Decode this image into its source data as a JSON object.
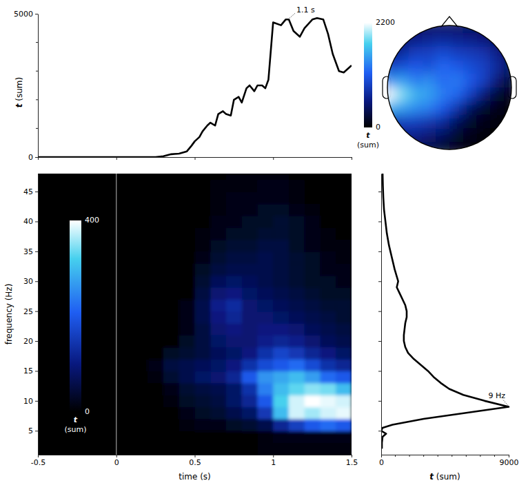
{
  "chart_data": [
    {
      "type": "line",
      "ylabel": "t (sum)",
      "x": [
        -0.5,
        -0.4,
        -0.3,
        -0.2,
        -0.1,
        0,
        0.1,
        0.2,
        0.25,
        0.3,
        0.35,
        0.4,
        0.45,
        0.48,
        0.5,
        0.53,
        0.55,
        0.58,
        0.6,
        0.63,
        0.65,
        0.68,
        0.7,
        0.73,
        0.75,
        0.78,
        0.8,
        0.83,
        0.85,
        0.88,
        0.9,
        0.93,
        0.95,
        0.97,
        1.0,
        1.05,
        1.08,
        1.1,
        1.13,
        1.17,
        1.2,
        1.25,
        1.28,
        1.32,
        1.35,
        1.38,
        1.42,
        1.45,
        1.5
      ],
      "values": [
        0,
        0,
        0,
        0,
        0,
        0,
        0,
        0,
        0,
        30,
        100,
        120,
        200,
        400,
        550,
        700,
        900,
        1100,
        1200,
        1100,
        1500,
        1600,
        1500,
        1450,
        2000,
        2100,
        1900,
        2400,
        2500,
        2300,
        2500,
        2500,
        2400,
        2700,
        4700,
        4600,
        4800,
        4800,
        4400,
        4200,
        4500,
        4800,
        4850,
        4800,
        4300,
        3600,
        3000,
        2950,
        3200
      ],
      "xlim": [
        -0.5,
        1.5
      ],
      "xticks": [
        -0.5,
        0,
        0.5,
        1,
        1.5
      ],
      "ylim": [
        0,
        5000
      ],
      "yticks": [
        0,
        5000
      ],
      "minor_yticks": [
        1000,
        2000,
        3000,
        4000
      ],
      "tick_labels": "y",
      "annotations": [
        {
          "text": "1.1 s",
          "x": 1.1,
          "y": 4800
        }
      ]
    },
    {
      "type": "heatmap",
      "xlabel": "time (s)",
      "ylabel": "frequency (Hz)",
      "x": [
        -0.45,
        -0.35,
        -0.25,
        -0.15,
        -0.05,
        0.05,
        0.15,
        0.25,
        0.35,
        0.45,
        0.55,
        0.65,
        0.75,
        0.85,
        0.95,
        1.05,
        1.15,
        1.25,
        1.35,
        1.45
      ],
      "y": [
        2,
        4,
        6,
        8,
        10,
        12,
        14,
        16,
        18,
        20,
        22,
        24,
        26,
        28,
        30,
        32,
        34,
        36,
        38,
        40,
        42,
        44,
        46,
        48
      ],
      "z": [
        [
          0,
          0,
          0,
          0,
          0,
          0,
          0,
          0,
          0,
          0,
          0,
          0,
          0,
          0,
          10,
          10,
          10,
          10,
          10,
          10
        ],
        [
          0,
          0,
          0,
          0,
          0,
          0,
          0,
          0,
          0,
          0,
          0,
          0,
          0,
          0,
          10,
          20,
          20,
          20,
          20,
          20
        ],
        [
          0,
          0,
          0,
          0,
          0,
          0,
          0,
          0,
          0,
          10,
          20,
          20,
          30,
          40,
          60,
          120,
          160,
          200,
          220,
          200
        ],
        [
          0,
          0,
          0,
          0,
          0,
          0,
          0,
          0,
          0,
          20,
          30,
          40,
          60,
          80,
          150,
          300,
          380,
          360,
          380,
          390
        ],
        [
          0,
          0,
          0,
          0,
          0,
          0,
          0,
          0,
          10,
          30,
          40,
          50,
          80,
          120,
          200,
          320,
          380,
          400,
          390,
          380
        ],
        [
          0,
          0,
          0,
          0,
          0,
          0,
          0,
          0,
          20,
          40,
          50,
          60,
          80,
          140,
          240,
          300,
          330,
          350,
          340,
          300
        ],
        [
          0,
          0,
          0,
          0,
          0,
          0,
          0,
          10,
          40,
          60,
          80,
          90,
          120,
          200,
          260,
          280,
          300,
          270,
          220,
          200
        ],
        [
          0,
          0,
          0,
          0,
          0,
          0,
          0,
          20,
          50,
          60,
          70,
          80,
          100,
          140,
          180,
          200,
          220,
          180,
          140,
          120
        ],
        [
          0,
          0,
          0,
          0,
          0,
          0,
          0,
          0,
          30,
          40,
          50,
          70,
          80,
          100,
          140,
          170,
          150,
          120,
          100,
          80
        ],
        [
          0,
          0,
          0,
          0,
          0,
          0,
          0,
          0,
          0,
          30,
          50,
          80,
          90,
          90,
          110,
          120,
          110,
          90,
          70,
          60
        ],
        [
          0,
          0,
          0,
          0,
          0,
          0,
          0,
          0,
          0,
          20,
          50,
          90,
          100,
          90,
          100,
          100,
          90,
          70,
          60,
          50
        ],
        [
          0,
          0,
          0,
          0,
          0,
          0,
          0,
          0,
          0,
          20,
          60,
          100,
          120,
          90,
          90,
          80,
          70,
          60,
          50,
          40
        ],
        [
          0,
          0,
          0,
          0,
          0,
          0,
          0,
          0,
          0,
          20,
          60,
          110,
          130,
          90,
          80,
          70,
          60,
          50,
          40,
          40
        ],
        [
          0,
          0,
          0,
          0,
          0,
          0,
          0,
          0,
          0,
          0,
          50,
          90,
          100,
          80,
          70,
          60,
          50,
          40,
          30,
          30
        ],
        [
          0,
          0,
          0,
          0,
          0,
          0,
          0,
          0,
          0,
          0,
          40,
          70,
          80,
          70,
          60,
          50,
          40,
          30,
          30,
          20
        ],
        [
          0,
          0,
          0,
          0,
          0,
          0,
          0,
          0,
          0,
          0,
          30,
          50,
          60,
          60,
          60,
          50,
          40,
          30,
          20,
          20
        ],
        [
          0,
          0,
          0,
          0,
          0,
          0,
          0,
          0,
          0,
          0,
          20,
          40,
          50,
          50,
          60,
          50,
          40,
          30,
          20,
          10
        ],
        [
          0,
          0,
          0,
          0,
          0,
          0,
          0,
          0,
          0,
          0,
          10,
          30,
          40,
          40,
          50,
          50,
          30,
          20,
          10,
          10
        ],
        [
          0,
          0,
          0,
          0,
          0,
          0,
          0,
          0,
          0,
          0,
          10,
          20,
          30,
          30,
          40,
          40,
          30,
          20,
          10,
          0
        ],
        [
          0,
          0,
          0,
          0,
          0,
          0,
          0,
          0,
          0,
          0,
          0,
          20,
          20,
          30,
          30,
          40,
          30,
          20,
          0,
          0
        ],
        [
          0,
          0,
          0,
          0,
          0,
          0,
          0,
          0,
          0,
          0,
          0,
          10,
          20,
          20,
          30,
          30,
          20,
          10,
          0,
          0
        ],
        [
          0,
          0,
          0,
          0,
          0,
          0,
          0,
          0,
          0,
          0,
          0,
          10,
          20,
          20,
          20,
          20,
          10,
          0,
          0,
          0
        ],
        [
          0,
          0,
          0,
          0,
          0,
          0,
          0,
          0,
          0,
          0,
          0,
          10,
          10,
          10,
          20,
          20,
          10,
          0,
          0,
          0
        ],
        [
          0,
          0,
          0,
          0,
          0,
          0,
          0,
          0,
          0,
          0,
          0,
          0,
          10,
          10,
          10,
          10,
          0,
          0,
          0,
          0
        ]
      ],
      "xlim": [
        -0.5,
        1.5
      ],
      "xticks": [
        -0.5,
        0,
        0.5,
        1,
        1.5
      ],
      "ylim": [
        1,
        48
      ],
      "yticks": [
        5,
        10,
        15,
        20,
        25,
        30,
        35,
        40,
        45
      ],
      "vline": 0,
      "colorbar": {
        "range": [
          0,
          400
        ],
        "ticks": [
          0,
          400
        ],
        "label": "t (sum)"
      }
    },
    {
      "type": "line",
      "orientation": "horizontal",
      "xlabel": "t (sum)",
      "y": [
        2,
        3,
        4,
        4.5,
        5,
        5.5,
        6,
        7,
        8,
        9,
        10,
        11,
        12,
        13,
        14,
        15,
        16,
        17,
        18,
        19,
        20,
        21,
        22,
        23,
        24,
        25,
        26,
        27,
        28,
        29,
        30,
        32,
        34,
        36,
        38,
        40,
        42,
        44,
        46,
        48
      ],
      "values": [
        50,
        50,
        100,
        350,
        0,
        100,
        800,
        3000,
        6000,
        9000,
        7300,
        5800,
        4800,
        4200,
        3700,
        3300,
        2800,
        2300,
        1900,
        1700,
        1600,
        1600,
        1650,
        1700,
        1800,
        1800,
        1700,
        1500,
        1300,
        1100,
        1200,
        950,
        750,
        550,
        400,
        300,
        200,
        150,
        120,
        100
      ],
      "xlim": [
        0,
        9000
      ],
      "xticks": [
        0,
        9000
      ],
      "minor_xticks": [
        1000,
        2000,
        3000,
        4000,
        5000,
        6000,
        7000,
        8000
      ],
      "ylim": [
        1,
        48
      ],
      "yticks": [
        5,
        10,
        15,
        20,
        25,
        30,
        35,
        40,
        45
      ],
      "tick_labels": "x",
      "annotations": [
        {
          "text": "9 Hz",
          "x": 9000,
          "y": 9
        }
      ]
    },
    {
      "type": "topomap",
      "z": [
        [
          300,
          350,
          400,
          450,
          450,
          450,
          400,
          350,
          300,
          250
        ],
        [
          400,
          500,
          600,
          650,
          700,
          650,
          600,
          550,
          400,
          300
        ],
        [
          600,
          700,
          900,
          900,
          1000,
          900,
          850,
          800,
          600,
          400
        ],
        [
          900,
          1000,
          1100,
          1000,
          1200,
          1100,
          1000,
          900,
          700,
          400
        ],
        [
          1400,
          1500,
          1300,
          1400,
          1200,
          1300,
          1100,
          900,
          500,
          200
        ],
        [
          2200,
          1900,
          1600,
          1500,
          1300,
          1200,
          900,
          500,
          200,
          100
        ],
        [
          1600,
          1500,
          1400,
          1300,
          1100,
          800,
          400,
          200,
          100,
          50
        ],
        [
          800,
          900,
          900,
          800,
          700,
          400,
          200,
          100,
          50,
          0
        ],
        [
          500,
          600,
          600,
          500,
          400,
          200,
          100,
          50,
          0,
          0
        ],
        [
          400,
          400,
          400,
          300,
          200,
          100,
          50,
          0,
          0,
          0
        ]
      ],
      "colorbar": {
        "range": [
          0,
          2200
        ],
        "ticks": [
          0,
          2200
        ],
        "label": "t (sum)"
      }
    }
  ]
}
